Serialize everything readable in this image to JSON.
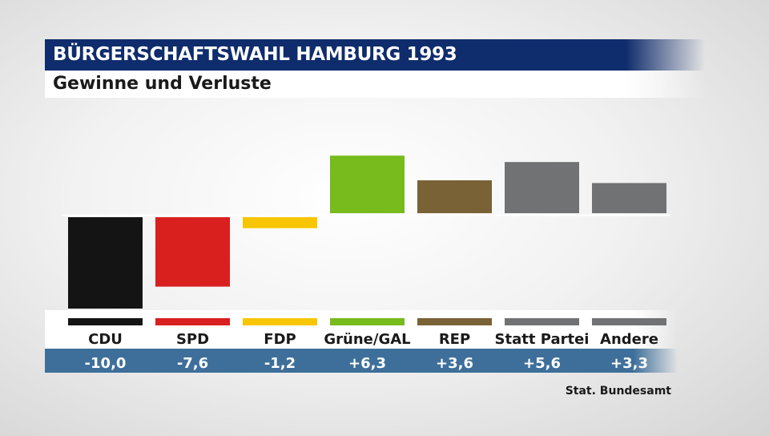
{
  "header": {
    "title": "BÜRGERSCHAFTSWAHL HAMBURG 1993",
    "subtitle": "Gewinne und Verluste"
  },
  "source": "Stat. Bundesamt",
  "colors": {
    "title_bar": "#0f2c6c",
    "value_bar": "#3e6f9a",
    "baseline": "#ffffff"
  },
  "chart_data": {
    "type": "bar",
    "title": "BÜRGERSCHAFTSWAHL HAMBURG 1993",
    "subtitle": "Gewinne und Verluste",
    "categories": [
      "CDU",
      "SPD",
      "FDP",
      "Grüne/GAL",
      "REP",
      "Statt Partei",
      "Andere"
    ],
    "values": [
      -10.0,
      -7.6,
      -1.2,
      6.3,
      3.6,
      5.6,
      3.3
    ],
    "value_labels": [
      "-10,0",
      "-7,6",
      "-1,2",
      "+6,3",
      "+3,6",
      "+5,6",
      "+3,3"
    ],
    "colors": [
      "#141414",
      "#d9201f",
      "#f7c600",
      "#77bb1c",
      "#7a6237",
      "#707274",
      "#707274"
    ],
    "ylim": [
      -10,
      6.3
    ],
    "grid": false,
    "legend": "none"
  }
}
